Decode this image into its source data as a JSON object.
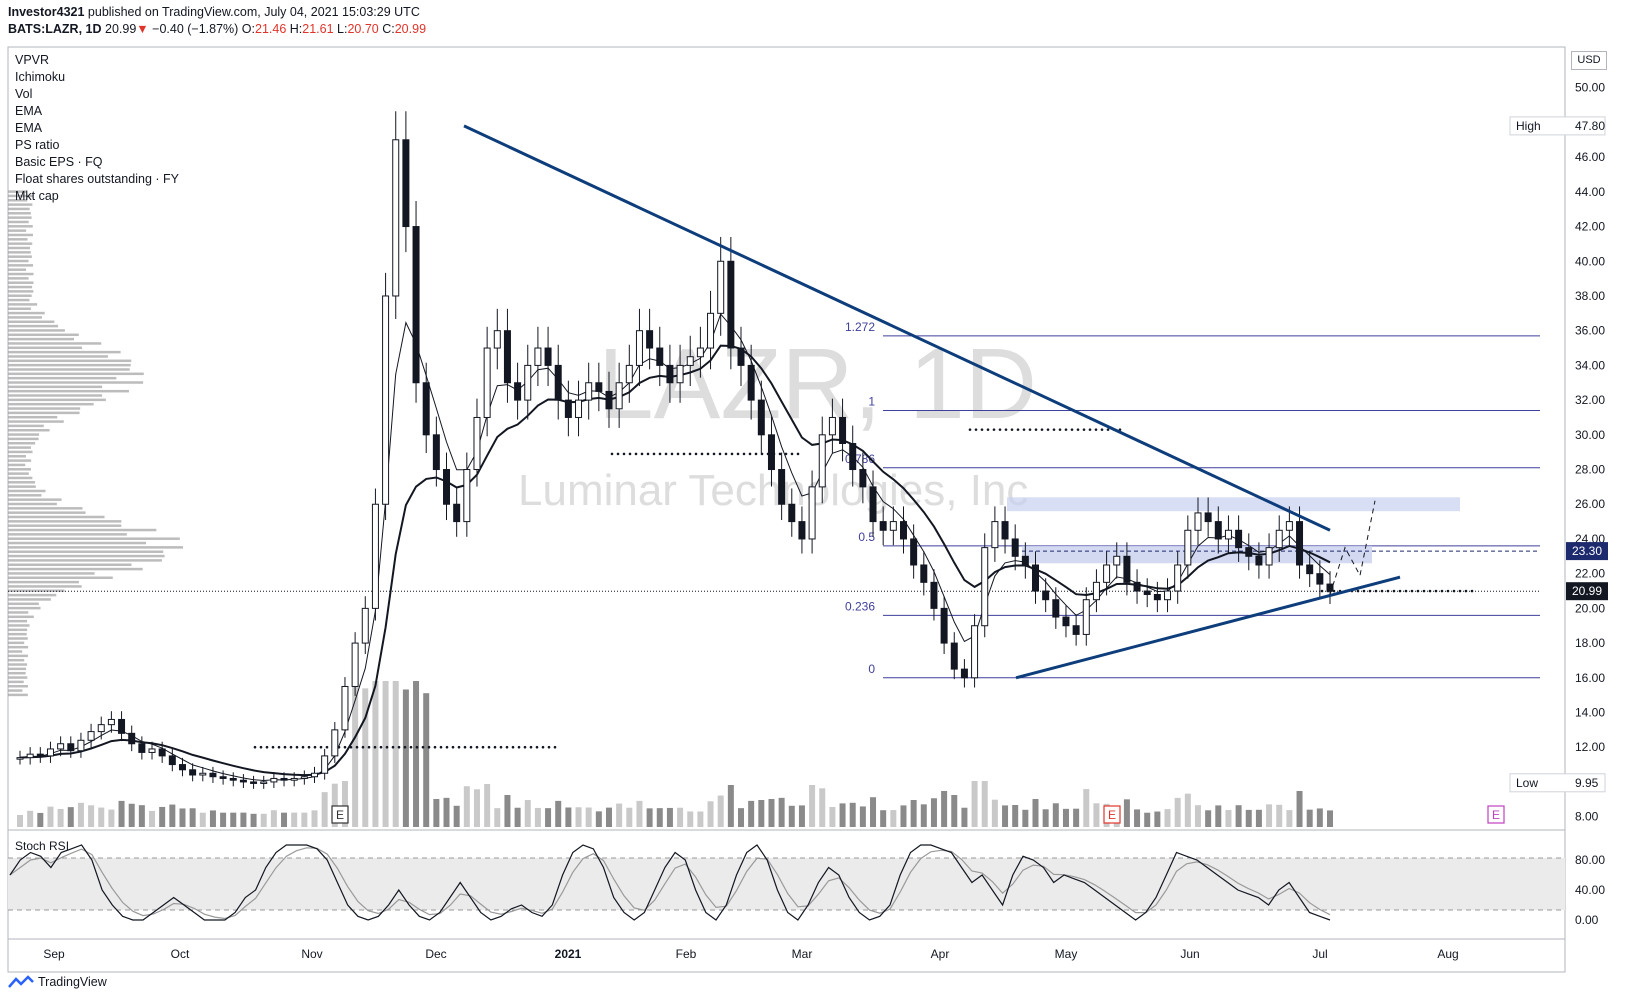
{
  "header": {
    "publisher": "Investor4321",
    "published_text": "published on TradingView.com, July 04, 2021 15:03:29 UTC",
    "symbol": "BATS:LAZR, 1D",
    "last": "20.99",
    "down_arrow": "▼",
    "change": "−0.40 (−1.87%)",
    "o_label": "O:",
    "o_val": "21.46",
    "h_label": "H:",
    "h_val": "21.61",
    "l_label": "L:",
    "l_val": "20.70",
    "c_label": "C:",
    "c_val": "20.99"
  },
  "indicators": [
    "VPVR",
    "Ichimoku",
    "Vol",
    "EMA",
    "EMA",
    "PS ratio",
    "Basic EPS · FQ",
    "Float shares outstanding · FY",
    "Mkt cap"
  ],
  "watermark": {
    "ticker": "LAZR, 1D",
    "name": "Luminar Technologies, Inc"
  },
  "footer": {
    "brand": "TradingView"
  },
  "stoch_label": "Stoch RSI",
  "currency": "USD",
  "colors": {
    "trend": "#0d3d7a",
    "fib": "#3f3f9c",
    "up": "#ffffff",
    "down": "#131722",
    "red": "#e0342b",
    "zone": "#c7d0ee"
  },
  "chart_data": [
    {
      "type": "candlestick",
      "title": "",
      "y_range": [
        7,
        52
      ],
      "x_ticks": [
        "Sep",
        "Oct",
        "Nov",
        "Dec",
        "2021",
        "Feb",
        "Mar",
        "Apr",
        "May",
        "Jun",
        "Jul",
        "Aug"
      ],
      "y_ticks": [
        "8.00",
        "12.00",
        "14.00",
        "16.00",
        "18.00",
        "20.00",
        "22.00",
        "24.00",
        "26.00",
        "28.00",
        "30.00",
        "32.00",
        "34.00",
        "36.00",
        "38.00",
        "40.00",
        "42.00",
        "44.00",
        "46.00",
        "50.00"
      ],
      "price_labels": [
        {
          "label": "High",
          "value": "47.80"
        },
        {
          "label": "Low",
          "value": "9.95"
        },
        {
          "label": "",
          "value": "23.30"
        },
        {
          "label": "",
          "value": "20.99"
        }
      ],
      "fib_levels": [
        {
          "ratio": "1.272",
          "price": 35.7
        },
        {
          "ratio": "1",
          "price": 31.4
        },
        {
          "ratio": "0.786",
          "price": 28.1
        },
        {
          "ratio": "0.5",
          "price": 23.6
        },
        {
          "ratio": "0.236",
          "price": 19.6
        },
        {
          "ratio": "0",
          "price": 16.0
        }
      ],
      "trendlines": [
        {
          "from": [
            "2020-12-08",
            47.8
          ],
          "to": [
            "2021-07-06",
            24.5
          ]
        },
        {
          "from": [
            "2021-04-20",
            16.0
          ],
          "to": [
            "2021-07-18",
            21.8
          ]
        }
      ],
      "events": [
        "E",
        "E",
        "E"
      ],
      "series": [
        {
          "name": "close",
          "values": [
            11.4,
            11.6,
            11.5,
            11.9,
            12.2,
            11.8,
            12.4,
            12.9,
            13.3,
            13.6,
            12.8,
            12.2,
            11.7,
            11.9,
            11.5,
            11.0,
            10.7,
            10.4,
            10.5,
            10.3,
            10.2,
            10.1,
            10.0,
            9.95,
            10.0,
            10.2,
            10.1,
            10.2,
            10.3,
            10.5,
            11.5,
            13.0,
            15.5,
            18.0,
            20.0,
            26.0,
            38.0,
            47.0,
            42.0,
            33.0,
            30.0,
            28.0,
            26.0,
            25.0,
            28.0,
            31.0,
            35.0,
            36.0,
            33.0,
            32.0,
            34.0,
            35.0,
            34.0,
            32.0,
            31.0,
            32.0,
            33.0,
            32.5,
            31.5,
            33.0,
            34.0,
            36.0,
            35.0,
            34.0,
            33.0,
            34.0,
            34.5,
            35.0,
            37.0,
            40.0,
            35.0,
            34.0,
            32.0,
            30.0,
            28.0,
            26.0,
            25.0,
            24.0,
            27.0,
            30.0,
            31.0,
            29.5,
            28.0,
            27.0,
            25.0,
            24.5,
            25.0,
            24.0,
            22.5,
            21.5,
            20.0,
            18.0,
            16.5,
            16.0,
            19.0,
            23.5,
            25.0,
            24.0,
            23.0,
            22.5,
            21.0,
            20.5,
            19.5,
            19.0,
            18.5,
            20.5,
            21.5,
            22.5,
            23.0,
            21.5,
            21.0,
            20.8,
            20.5,
            21.0,
            22.5,
            24.5,
            25.5,
            25.0,
            24.0,
            24.5,
            23.5,
            23.0,
            22.5,
            23.5,
            24.5,
            25.0,
            22.5,
            22.0,
            21.4,
            20.99
          ]
        }
      ]
    },
    {
      "type": "line",
      "title": "",
      "y_range": [
        0,
        100
      ],
      "y_ticks": [
        "0.00",
        "40.00",
        "80.00"
      ],
      "series": [
        {
          "name": "",
          "values": [
            60,
            80,
            90,
            85,
            70,
            90,
            95,
            100,
            80,
            40,
            20,
            5,
            0,
            0,
            10,
            20,
            30,
            20,
            10,
            0,
            0,
            0,
            10,
            30,
            40,
            70,
            90,
            100,
            100,
            100,
            95,
            80,
            50,
            20,
            5,
            0,
            5,
            20,
            40,
            20,
            5,
            0,
            10,
            30,
            50,
            30,
            10,
            0,
            5,
            15,
            20,
            10,
            5,
            20,
            60,
            90,
            100,
            95,
            70,
            30,
            10,
            0,
            10,
            40,
            70,
            90,
            80,
            40,
            10,
            0,
            20,
            60,
            90,
            100,
            80,
            40,
            10,
            0,
            20,
            50,
            70,
            60,
            30,
            10,
            0,
            5,
            20,
            60,
            90,
            100,
            100,
            95,
            90,
            70,
            50,
            60,
            40,
            20,
            60,
            85,
            80,
            70,
            50,
            60,
            55,
            50,
            40,
            30,
            20,
            10,
            0,
            10,
            30,
            60,
            90,
            85,
            80,
            70,
            60,
            50,
            40,
            35,
            30,
            20,
            40,
            50,
            30,
            10,
            5,
            0
          ]
        }
      ],
      "levels": [
        80,
        20
      ]
    }
  ]
}
